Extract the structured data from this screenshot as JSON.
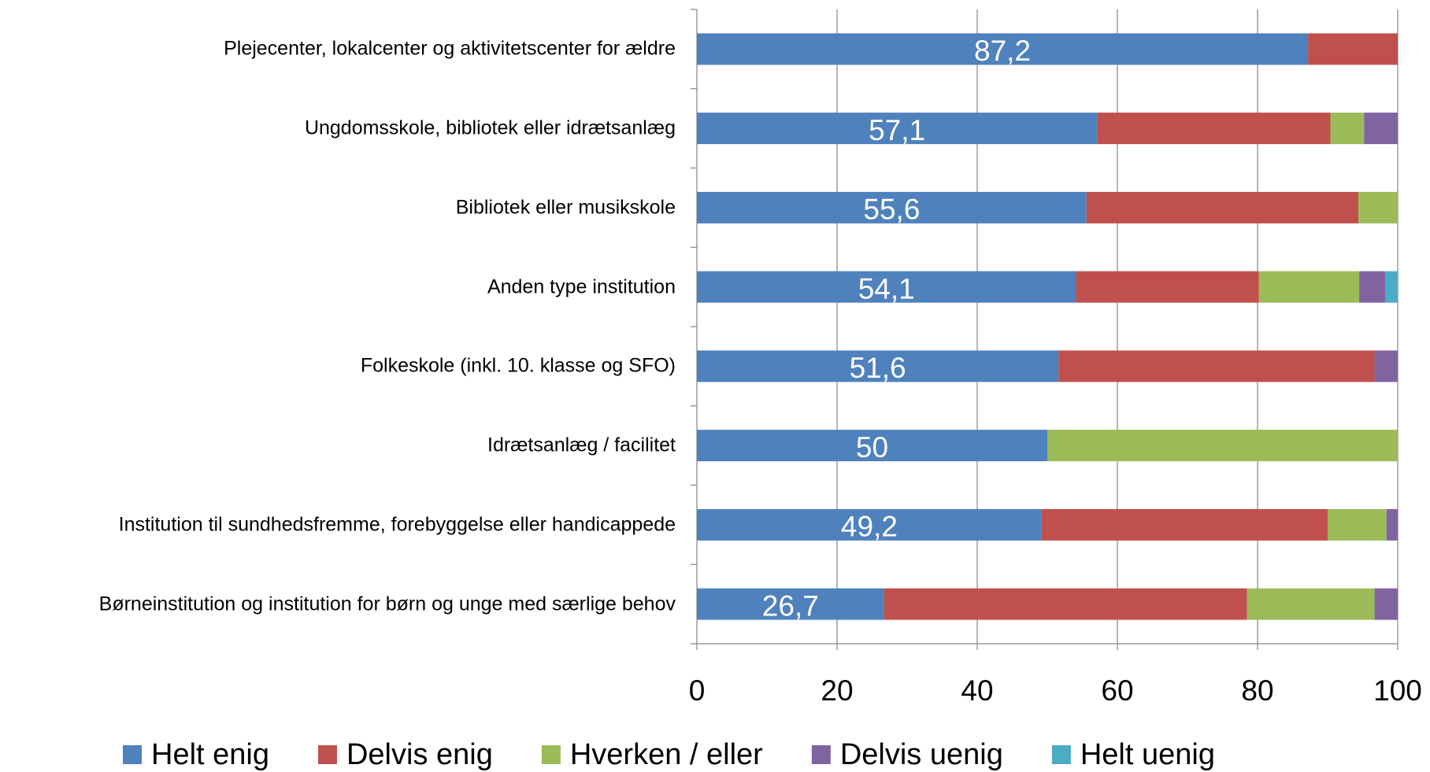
{
  "chart_data": {
    "type": "stacked_bar_horizontal",
    "categories": [
      "Plejecenter, lokalcenter og aktivitetscenter for ældre",
      "Ungdomsskole, bibliotek eller idrætsanlæg",
      "Bibliotek eller musikskole",
      "Anden type institution",
      "Folkeskole (inkl. 10. klasse og SFO)",
      "Idrætsanlæg / facilitet",
      "Institution til sundhedsfremme, forebyggelse eller handicappede",
      "Børneinstitution og institution for børn og unge med særlige behov"
    ],
    "series": [
      {
        "name": "Helt enig",
        "color": "#4f81bd",
        "values": [
          87.2,
          57.1,
          55.6,
          54.1,
          51.6,
          50,
          49.2,
          26.7
        ],
        "value_labels": [
          "87,2",
          "57,1",
          "55,6",
          "54,1",
          "51,6",
          "50",
          "49,2",
          "26,7"
        ]
      },
      {
        "name": "Delvis enig",
        "color": "#c0504d",
        "values": [
          12.8,
          33.3,
          38.8,
          26.1,
          45.1,
          0,
          40.8,
          51.8
        ]
      },
      {
        "name": "Hverken / eller",
        "color": "#9bbb59",
        "values": [
          0,
          4.8,
          5.6,
          14.3,
          0,
          50,
          8.4,
          18.2
        ]
      },
      {
        "name": "Delvis uenig",
        "color": "#8064a2",
        "values": [
          0,
          4.8,
          0,
          3.7,
          3.3,
          0,
          1.6,
          3.3
        ]
      },
      {
        "name": "Helt uenig",
        "color": "#4bacc6",
        "values": [
          0,
          0,
          0,
          1.8,
          0,
          0,
          0,
          0
        ]
      }
    ],
    "xlim": [
      0,
      100
    ],
    "xticks": [
      0,
      20,
      40,
      60,
      80,
      100
    ],
    "grid": true,
    "legend": "bottom"
  }
}
